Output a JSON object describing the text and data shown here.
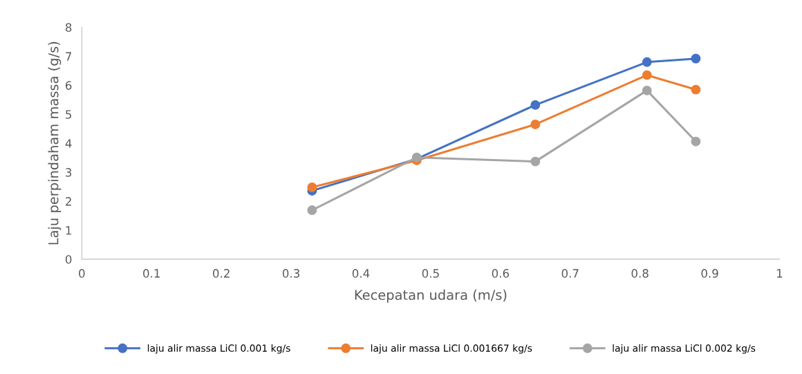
{
  "chart_data": {
    "type": "line",
    "xlabel": "Kecepatan udara (m/s)",
    "ylabel": "Laju perpindaham massa (g/s)",
    "x": [
      0.33,
      0.48,
      0.65,
      0.81,
      0.88
    ],
    "series": [
      {
        "name": "laju alir massa LiCl 0.001 kg/s",
        "color": "#4472c4",
        "values": [
          2.36,
          3.46,
          5.32,
          6.8,
          6.92
        ]
      },
      {
        "name": "laju alir massa LiCl 0.001667 kg/s",
        "color": "#ed7d31",
        "values": [
          2.48,
          3.41,
          4.65,
          6.35,
          5.85
        ]
      },
      {
        "name": "laju alir massa LiCl 0.002 kg/s",
        "color": "#a5a5a5",
        "values": [
          1.69,
          3.51,
          3.37,
          5.82,
          4.06
        ]
      }
    ],
    "xlim": [
      0,
      1
    ],
    "xticks": [
      0,
      0.1,
      0.2,
      0.3,
      0.4,
      0.5,
      0.6,
      0.7,
      0.8,
      0.9,
      1
    ],
    "ylim": [
      0,
      8
    ],
    "yticks": [
      0,
      1,
      2,
      3,
      4,
      5,
      6,
      7,
      8
    ],
    "grid": false,
    "legend": "bottom",
    "marker": "circle",
    "line_style": "solid"
  }
}
